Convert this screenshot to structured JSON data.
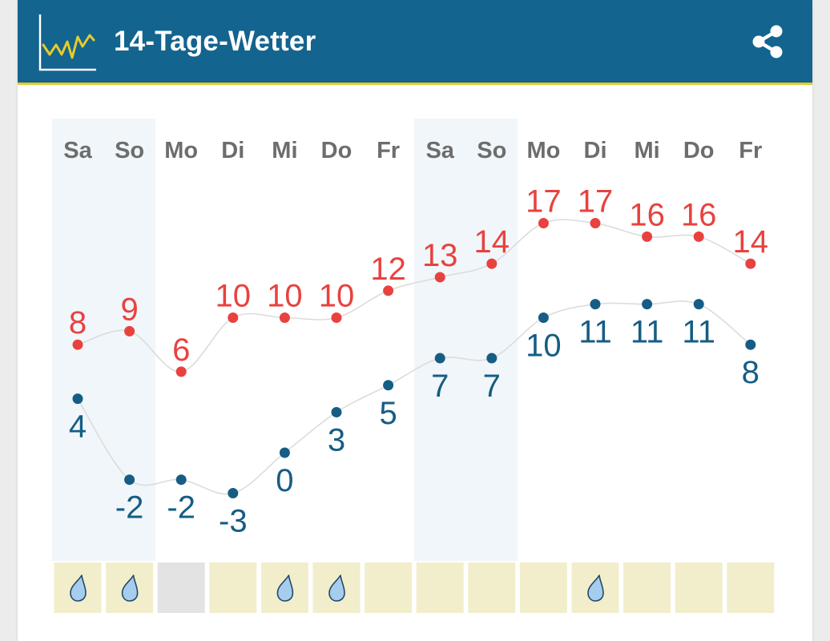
{
  "header": {
    "title": "14-Tage-Wetter",
    "logo_icon": "line-chart-icon",
    "share_icon": "share-icon"
  },
  "colors": {
    "header_bg": "#13648f",
    "accent": "#e6cb2a",
    "max_temp": "#e8423f",
    "min_temp": "#155d84",
    "weekend_bg": "#f1f6fa",
    "precip_cell": "#f2eecb",
    "precip_none": "#e3e3e3",
    "drop_fill": "#a7cdee"
  },
  "chart_data": {
    "type": "line",
    "categories": [
      "Sa",
      "So",
      "Mo",
      "Di",
      "Mi",
      "Do",
      "Fr",
      "Sa",
      "So",
      "Mo",
      "Di",
      "Mi",
      "Do",
      "Fr"
    ],
    "weekend_index": [
      0,
      1,
      7,
      8
    ],
    "series": [
      {
        "values": [
          8,
          9,
          6,
          10,
          10,
          10,
          12,
          13,
          14,
          17,
          17,
          16,
          16,
          14
        ]
      },
      {
        "values": [
          4,
          -2,
          -2,
          -3,
          0,
          3,
          5,
          7,
          7,
          10,
          11,
          11,
          11,
          8
        ]
      }
    ],
    "precipitation": {
      "icon": "raindrop-icon",
      "days_with_rain": [
        true,
        true,
        false,
        false,
        true,
        true,
        false,
        false,
        false,
        false,
        true,
        false,
        false,
        false
      ],
      "no_data": [
        false,
        false,
        true,
        false,
        false,
        false,
        false,
        false,
        false,
        false,
        false,
        false,
        false,
        false
      ]
    }
  }
}
